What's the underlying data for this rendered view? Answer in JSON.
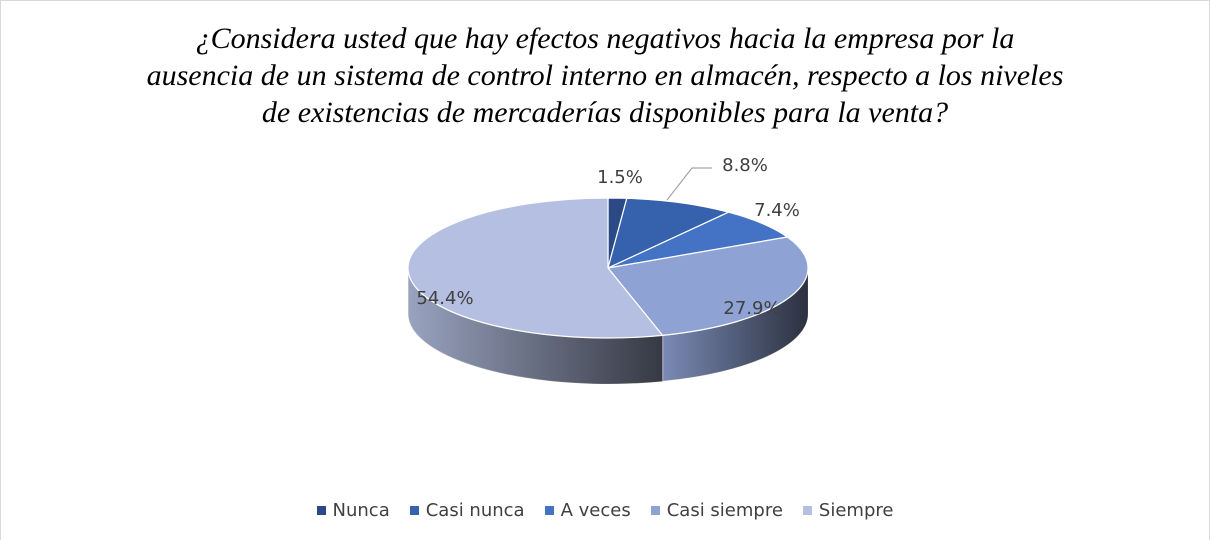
{
  "chart_data": {
    "type": "pie3d",
    "title": "¿Considera usted que hay efectos negativos hacia la empresa por la ausencia de un sistema de control interno en almacén, respecto a los niveles de existencias de mercaderías disponibles para la venta?",
    "categories": [
      "Nunca",
      "Casi nunca",
      "A veces",
      "Casi siempre",
      "Siempre"
    ],
    "values": [
      1.5,
      8.8,
      7.4,
      27.9,
      54.4
    ],
    "value_labels": [
      "1.5%",
      "8.8%",
      "7.4%",
      "27.9%",
      "54.4%"
    ],
    "colors": [
      "#2b4a85",
      "#3561ad",
      "#4472c4",
      "#8fa2d4",
      "#b4bfe1"
    ],
    "legend": "bottom"
  }
}
